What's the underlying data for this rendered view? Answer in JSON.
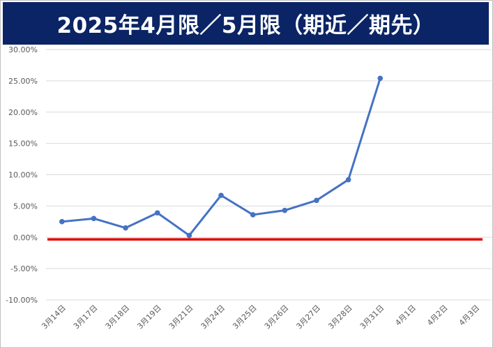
{
  "header": {
    "title": "2025年4月限／5月限（期近／期先）"
  },
  "colors": {
    "title_bg": "#0b2465",
    "series_line": "#4472c4",
    "zero_line": "#e00000",
    "grid": "#d9d9d9"
  },
  "chart_data": {
    "type": "line",
    "title": "2025年4月限／5月限（期近／期先）",
    "categories": [
      "3月14日",
      "3月17日",
      "3月18日",
      "3月19日",
      "3月21日",
      "3月24日",
      "3月25日",
      "3月26日",
      "3月27日",
      "3月28日",
      "3月31日",
      "4月1日",
      "4月2日",
      "4月3日"
    ],
    "series": [
      {
        "values": [
          0.025,
          0.03,
          0.015,
          0.039,
          0.003,
          0.067,
          0.036,
          0.043,
          0.059,
          0.092,
          0.254,
          null,
          null,
          null
        ]
      }
    ],
    "reference_line": {
      "y": 0.0
    },
    "ylim": [
      -0.1,
      0.3
    ],
    "y_ticks": [
      0.3,
      0.25,
      0.2,
      0.15,
      0.1,
      0.05,
      0.0,
      -0.05,
      -0.1
    ],
    "y_tick_labels": [
      "30.00%",
      "25.00%",
      "20.00%",
      "15.00%",
      "10.00%",
      "5.00%",
      "0.00%",
      "-5.00%",
      "-10.00%"
    ],
    "grid": true,
    "legend": "none"
  }
}
